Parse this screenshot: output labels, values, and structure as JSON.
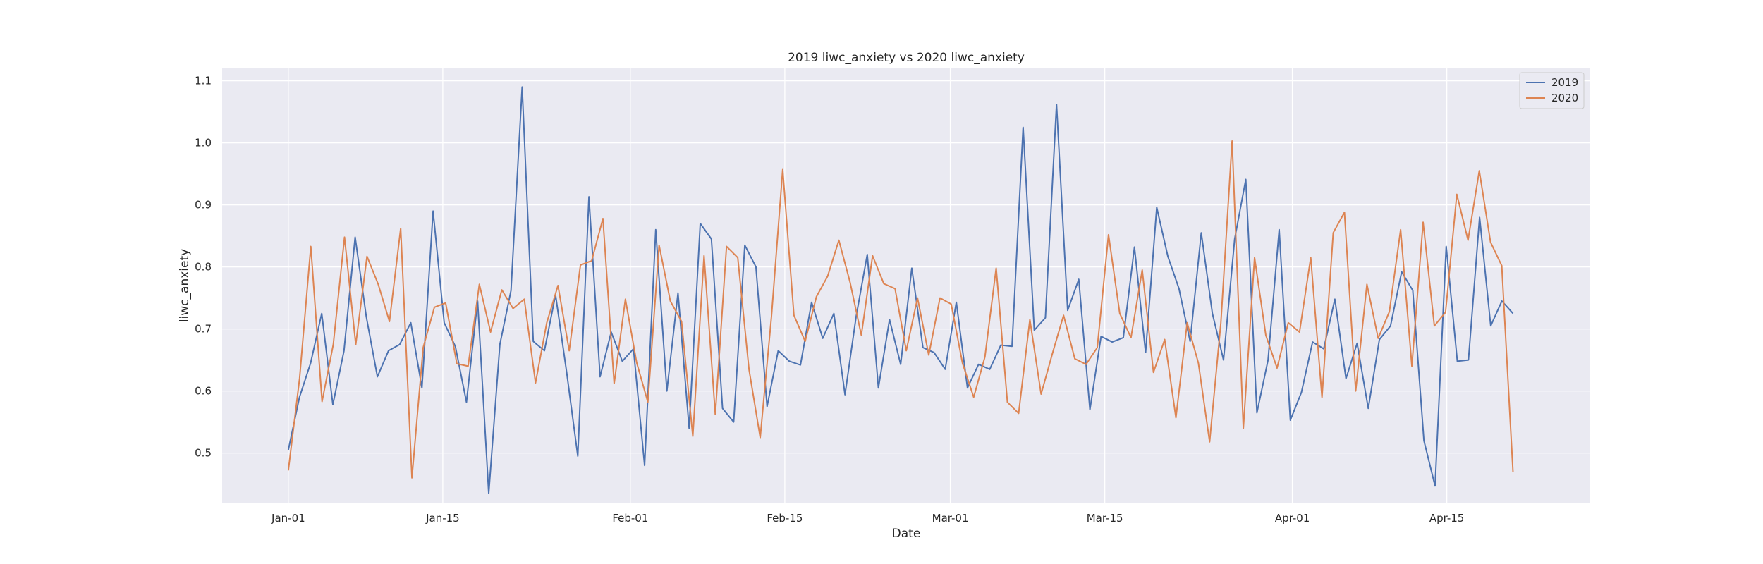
{
  "chart_data": {
    "type": "line",
    "title": "2019 liwc_anxiety vs 2020 liwc_anxiety",
    "xlabel": "Date",
    "ylabel": "liwc_anxiety",
    "x_start": "01-01",
    "x_end": "04-21",
    "xlim": [
      "12-26",
      "04-28"
    ],
    "ylim": [
      0.42,
      1.12
    ],
    "x_ticks": [
      {
        "date": "01-01",
        "label": "Jan-01"
      },
      {
        "date": "01-15",
        "label": "Jan-15"
      },
      {
        "date": "02-01",
        "label": "Feb-01"
      },
      {
        "date": "02-15",
        "label": "Feb-15"
      },
      {
        "date": "03-01",
        "label": "Mar-01"
      },
      {
        "date": "03-15",
        "label": "Mar-15"
      },
      {
        "date": "04-01",
        "label": "Apr-01"
      },
      {
        "date": "04-15",
        "label": "Apr-15"
      }
    ],
    "y_ticks": [
      0.5,
      0.6,
      0.7,
      0.8,
      0.9,
      1.0,
      1.1
    ],
    "grid": true,
    "legend_position": "top-right",
    "series": [
      {
        "name": "2019",
        "color": "#4c72b0",
        "values": [
          0.505,
          0.59,
          0.645,
          0.725,
          0.578,
          0.665,
          0.848,
          0.72,
          0.623,
          0.665,
          0.675,
          0.71,
          0.605,
          0.89,
          0.71,
          0.672,
          0.582,
          0.745,
          0.435,
          0.675,
          0.762,
          1.09,
          0.68,
          0.665,
          0.755,
          0.63,
          0.495,
          0.913,
          0.623,
          0.695,
          0.648,
          0.668,
          0.48,
          0.86,
          0.6,
          0.758,
          0.54,
          0.87,
          0.845,
          0.572,
          0.55,
          0.835,
          0.8,
          0.575,
          0.665,
          0.648,
          0.642,
          0.743,
          0.685,
          0.725,
          0.594,
          0.72,
          0.82,
          0.605,
          0.715,
          0.643,
          0.798,
          0.67,
          0.662,
          0.635,
          0.743,
          0.605,
          0.643,
          0.635,
          0.674,
          0.672,
          1.025,
          0.698,
          0.718,
          1.062,
          0.73,
          0.78,
          0.57,
          0.688,
          0.679,
          0.686,
          0.832,
          0.662,
          0.896,
          0.817,
          0.765,
          0.68,
          0.855,
          0.725,
          0.65,
          0.845,
          0.941,
          0.565,
          0.65,
          0.86,
          0.553,
          0.598,
          0.679,
          0.668,
          0.748,
          0.62,
          0.677,
          0.572,
          0.683,
          0.705,
          0.792,
          0.762,
          0.52,
          0.447,
          0.833,
          0.648,
          0.65,
          0.88,
          0.705,
          0.745,
          0.725
        ]
      },
      {
        "name": "2020",
        "color": "#dd8452",
        "values": [
          0.472,
          0.62,
          0.833,
          0.583,
          0.675,
          0.848,
          0.675,
          0.817,
          0.772,
          0.712,
          0.862,
          0.46,
          0.67,
          0.735,
          0.742,
          0.644,
          0.64,
          0.772,
          0.695,
          0.763,
          0.733,
          0.748,
          0.613,
          0.71,
          0.77,
          0.665,
          0.803,
          0.81,
          0.878,
          0.612,
          0.748,
          0.646,
          0.582,
          0.835,
          0.745,
          0.712,
          0.527,
          0.818,
          0.562,
          0.833,
          0.815,
          0.635,
          0.525,
          0.72,
          0.957,
          0.722,
          0.68,
          0.752,
          0.785,
          0.843,
          0.775,
          0.69,
          0.818,
          0.773,
          0.765,
          0.665,
          0.75,
          0.658,
          0.75,
          0.74,
          0.645,
          0.59,
          0.655,
          0.798,
          0.582,
          0.564,
          0.715,
          0.595,
          0.66,
          0.722,
          0.652,
          0.643,
          0.67,
          0.852,
          0.725,
          0.686,
          0.795,
          0.63,
          0.683,
          0.557,
          0.71,
          0.645,
          0.518,
          0.71,
          1.003,
          0.54,
          0.815,
          0.69,
          0.637,
          0.71,
          0.695,
          0.815,
          0.59,
          0.855,
          0.888,
          0.6,
          0.772,
          0.685,
          0.728,
          0.86,
          0.64,
          0.872,
          0.705,
          0.727,
          0.917,
          0.843,
          0.955,
          0.84,
          0.802,
          0.47
        ]
      }
    ]
  }
}
